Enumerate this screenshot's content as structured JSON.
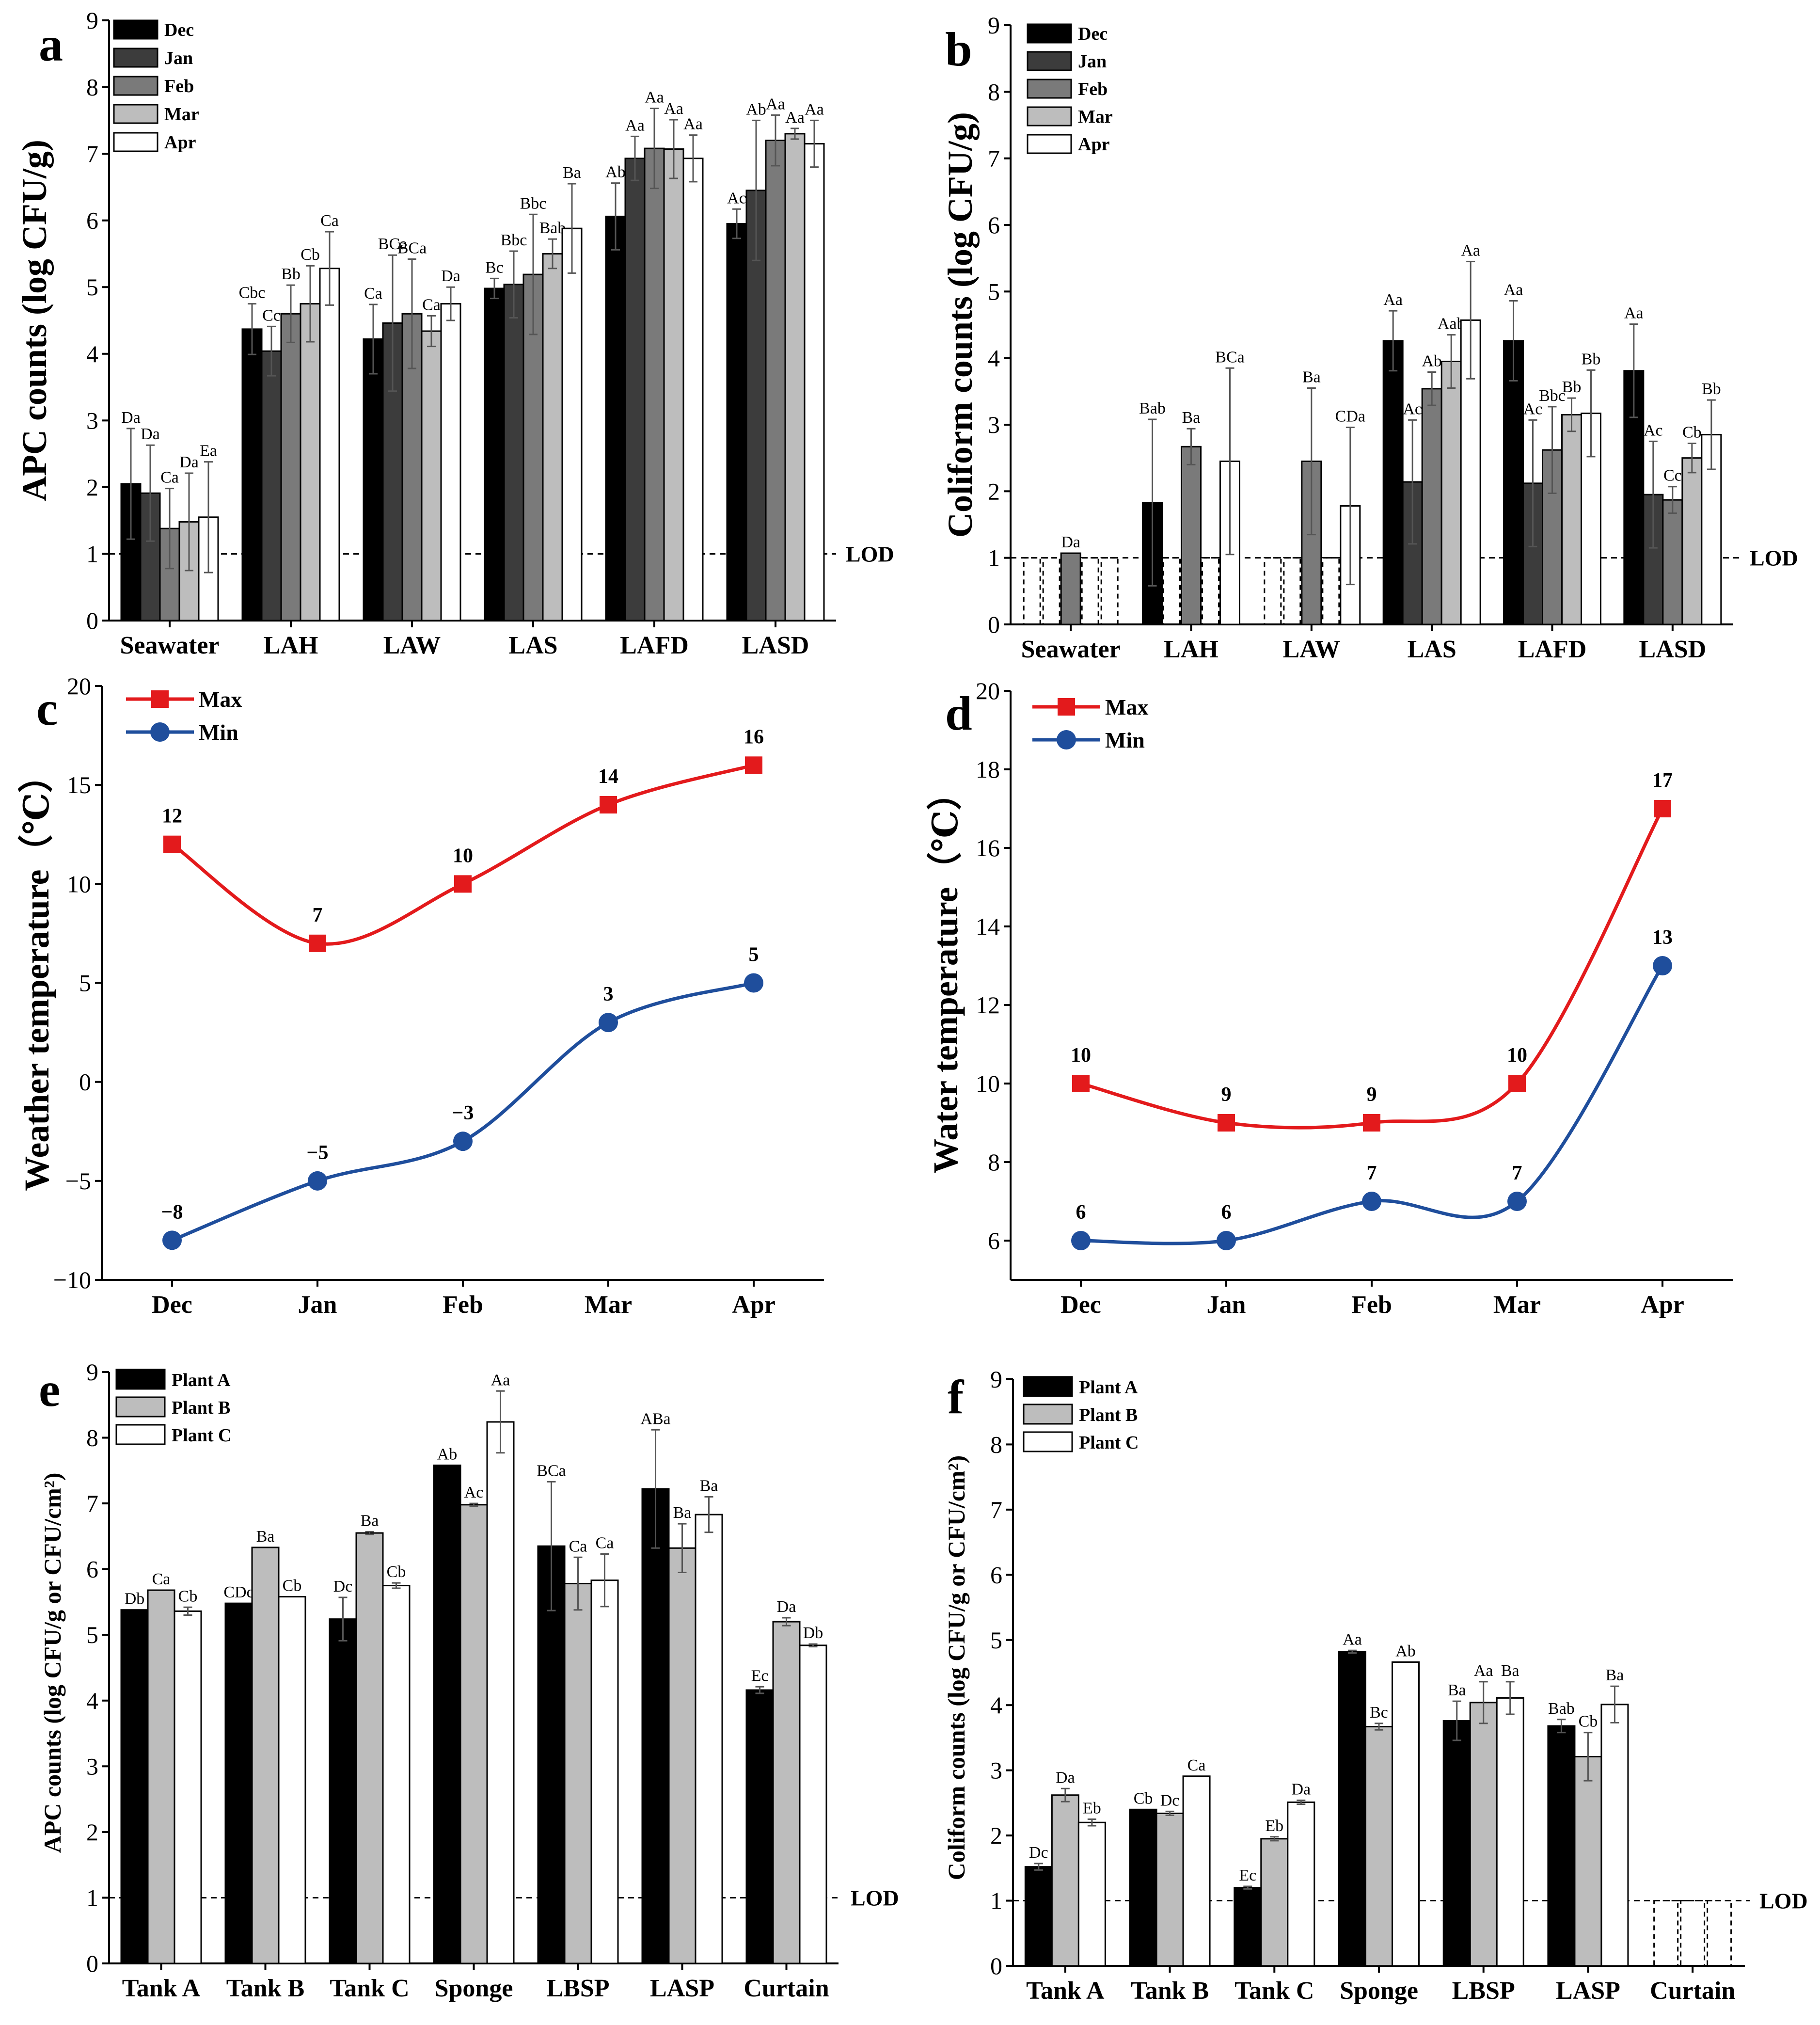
{
  "figure": {
    "colors": {
      "Dec": "#000000",
      "Jan": "#3c3c3c",
      "Feb": "#7a7a7a",
      "Mar": "#bdbdbd",
      "Apr": "#ffffff",
      "PlantA": "#000000",
      "PlantB": "#bdbdbd",
      "PlantC": "#ffffff",
      "Max": "#e31a1c",
      "Min": "#1f4e9c"
    }
  },
  "chart_data": [
    {
      "panel": "a",
      "type": "bar",
      "ylabel": "APC counts (log CFU/g)",
      "ylim": [
        0,
        9
      ],
      "yticks": [
        0,
        1,
        2,
        3,
        4,
        5,
        6,
        7,
        8,
        9
      ],
      "lod": 1,
      "lod_label": "LOD",
      "categories": [
        "Seawater",
        "LAH",
        "LAW",
        "LAS",
        "LAFD",
        "LASD"
      ],
      "legend": [
        "Dec",
        "Jan",
        "Feb",
        "Mar",
        "Apr"
      ],
      "series": [
        {
          "name": "Dec",
          "values": [
            2.05,
            4.37,
            4.22,
            4.98,
            6.06,
            5.95
          ],
          "err": [
            0.83,
            0.38,
            0.52,
            0.15,
            0.5,
            0.22
          ],
          "sig": [
            "Da",
            "Cbc",
            "Ca",
            "Bc",
            "Ab",
            "Ac"
          ]
        },
        {
          "name": "Jan",
          "values": [
            1.91,
            4.04,
            4.46,
            5.04,
            6.93,
            6.45
          ],
          "err": [
            0.72,
            0.37,
            1.02,
            0.5,
            0.33,
            1.05
          ],
          "sig": [
            "Da",
            "Cc",
            "BCa",
            "Bbc",
            "Aa",
            "Ab"
          ]
        },
        {
          "name": "Feb",
          "values": [
            1.38,
            4.6,
            4.6,
            5.19,
            7.08,
            7.2
          ],
          "err": [
            0.6,
            0.43,
            0.82,
            0.9,
            0.6,
            0.38
          ],
          "sig": [
            "Ca",
            "Bb",
            "BCa",
            "Bbc",
            "Aa",
            "Aa"
          ]
        },
        {
          "name": "Mar",
          "values": [
            1.48,
            4.75,
            4.34,
            5.5,
            7.07,
            7.3
          ],
          "err": [
            0.73,
            0.57,
            0.23,
            0.22,
            0.44,
            0.08
          ],
          "sig": [
            "Da",
            "Cb",
            "Ca",
            "Bab",
            "Aa",
            "Aa"
          ]
        },
        {
          "name": "Apr",
          "values": [
            1.55,
            5.28,
            4.75,
            5.88,
            6.93,
            7.15
          ],
          "err": [
            0.83,
            0.55,
            0.25,
            0.67,
            0.35,
            0.35
          ],
          "sig": [
            "Ea",
            "Ca",
            "Da",
            "Ba",
            "Aa",
            "Aa"
          ]
        }
      ]
    },
    {
      "panel": "b",
      "type": "bar",
      "ylabel": "Coliform counts (log CFU/g)",
      "ylim": [
        0,
        9
      ],
      "yticks": [
        0,
        1,
        2,
        3,
        4,
        5,
        6,
        7,
        8,
        9
      ],
      "lod": 1,
      "lod_label": "LOD",
      "categories": [
        "Seawater",
        "LAH",
        "LAW",
        "LAS",
        "LAFD",
        "LASD"
      ],
      "legend": [
        "Dec",
        "Jan",
        "Feb",
        "Mar",
        "Apr"
      ],
      "series": [
        {
          "name": "Dec",
          "values": [
            null,
            1.83,
            null,
            4.26,
            4.26,
            3.81
          ],
          "err": [
            0,
            1.25,
            0,
            0.45,
            0.6,
            0.7
          ],
          "sig": [
            "",
            "Bab",
            "",
            "Aa",
            "Aa",
            "Aa"
          ]
        },
        {
          "name": "Jan",
          "values": [
            null,
            null,
            null,
            2.14,
            2.12,
            1.95
          ],
          "err": [
            0,
            0,
            0,
            0.93,
            0.95,
            0.8
          ],
          "sig": [
            "",
            "",
            "",
            "Ac",
            "Ac",
            "Ac"
          ]
        },
        {
          "name": "Feb",
          "values": [
            1.07,
            2.67,
            2.45,
            3.54,
            2.62,
            1.87
          ],
          "err": [
            0,
            0.27,
            1.1,
            0.25,
            0.65,
            0.2
          ],
          "sig": [
            "Da",
            "Ba",
            "Ba",
            "Ab",
            "Bbc",
            "Cc"
          ]
        },
        {
          "name": "Mar",
          "values": [
            null,
            null,
            null,
            3.95,
            3.15,
            2.5
          ],
          "err": [
            0,
            0,
            0,
            0.4,
            0.25,
            0.22
          ],
          "sig": [
            "",
            "",
            "",
            "Aab",
            "Bb",
            "Cb"
          ]
        },
        {
          "name": "Apr",
          "values": [
            null,
            2.45,
            1.78,
            4.57,
            3.17,
            2.85
          ],
          "err": [
            0,
            1.4,
            1.18,
            0.88,
            0.65,
            0.52
          ],
          "sig": [
            "",
            "BCa",
            "CDa",
            "Aa",
            "Bb",
            "Bb"
          ]
        }
      ]
    },
    {
      "panel": "c",
      "type": "line",
      "ylabel": "Weather temperature（℃）",
      "ylim": [
        -10,
        20
      ],
      "yticks": [
        -10,
        -5,
        0,
        5,
        10,
        15,
        20
      ],
      "categories": [
        "Dec",
        "Jan",
        "Feb",
        "Mar",
        "Apr"
      ],
      "series": [
        {
          "name": "Max",
          "values": [
            12,
            7,
            10,
            14,
            16
          ],
          "labels": [
            "12",
            "7",
            "10",
            "14",
            "16"
          ]
        },
        {
          "name": "Min",
          "values": [
            -8,
            -5,
            -3,
            3,
            5
          ],
          "labels": [
            "−8",
            "−5",
            "−3",
            "3",
            "5"
          ]
        }
      ]
    },
    {
      "panel": "d",
      "type": "line",
      "ylabel": "Water temperature（℃）",
      "ylim": [
        5,
        20
      ],
      "yticks": [
        6,
        8,
        10,
        12,
        14,
        16,
        18,
        20
      ],
      "categories": [
        "Dec",
        "Jan",
        "Feb",
        "Mar",
        "Apr"
      ],
      "series": [
        {
          "name": "Max",
          "values": [
            10,
            9,
            9,
            10,
            17
          ],
          "labels": [
            "10",
            "9",
            "9",
            "10",
            "17"
          ]
        },
        {
          "name": "Min",
          "values": [
            6,
            6,
            7,
            7,
            13
          ],
          "labels": [
            "6",
            "6",
            "7",
            "7",
            "13"
          ]
        }
      ]
    },
    {
      "panel": "e",
      "type": "bar",
      "ylabel": "APC counts (log CFU/g or CFU/cm²)",
      "ylim": [
        0,
        9
      ],
      "yticks": [
        0,
        1,
        2,
        3,
        4,
        5,
        6,
        7,
        8,
        9
      ],
      "lod": 1,
      "lod_label": "LOD",
      "categories": [
        "Tank A",
        "Tank B",
        "Tank C",
        "Sponge",
        "LBSP",
        "LASP",
        "Curtain"
      ],
      "legend": [
        "Plant A",
        "Plant B",
        "Plant C"
      ],
      "series": [
        {
          "name": "Plant A",
          "values": [
            5.38,
            5.48,
            5.24,
            7.58,
            6.35,
            7.22,
            4.16
          ],
          "err": [
            0,
            0,
            0.33,
            0,
            0.98,
            0.9,
            0.05
          ],
          "sig": [
            "Db",
            "CDc",
            "Dc",
            "Ab",
            "BCa",
            "ABa",
            "Ec"
          ]
        },
        {
          "name": "Plant B",
          "values": [
            5.68,
            6.33,
            6.55,
            6.98,
            5.78,
            6.32,
            5.2
          ],
          "err": [
            0,
            0,
            0.02,
            0.02,
            0.4,
            0.37,
            0.06
          ],
          "sig": [
            "Ca",
            "Ba",
            "Ba",
            "Ac",
            "Ca",
            "Ba",
            "Da"
          ]
        },
        {
          "name": "Plant C",
          "values": [
            5.36,
            5.58,
            5.75,
            8.24,
            5.83,
            6.83,
            4.84
          ],
          "err": [
            0.06,
            0,
            0.04,
            0.47,
            0.4,
            0.27,
            0.02
          ],
          "sig": [
            "Cb",
            "Cb",
            "Cb",
            "Aa",
            "Ca",
            "Ba",
            "Db"
          ]
        }
      ]
    },
    {
      "panel": "f",
      "type": "bar",
      "ylabel": "Coliform counts (log CFU/g or CFU/cm²)",
      "ylim": [
        0,
        9
      ],
      "yticks": [
        0,
        1,
        2,
        3,
        4,
        5,
        6,
        7,
        8,
        9
      ],
      "lod": 1,
      "lod_label": "LOD",
      "categories": [
        "Tank A",
        "Tank B",
        "Tank C",
        "Sponge",
        "LBSP",
        "LASP",
        "Curtain"
      ],
      "legend": [
        "Plant A",
        "Plant B",
        "Plant C"
      ],
      "series": [
        {
          "name": "Plant A",
          "values": [
            1.52,
            2.4,
            1.2,
            4.82,
            3.76,
            3.68,
            null
          ],
          "err": [
            0.05,
            0,
            0.02,
            0.02,
            0.3,
            0.1,
            0
          ],
          "sig": [
            "Dc",
            "Cb",
            "Ec",
            "Aa",
            "Ba",
            "Bab",
            ""
          ]
        },
        {
          "name": "Plant B",
          "values": [
            2.62,
            2.34,
            1.95,
            3.67,
            4.04,
            3.21,
            null
          ],
          "err": [
            0.1,
            0.03,
            0.03,
            0.05,
            0.32,
            0.37,
            0
          ],
          "sig": [
            "Da",
            "Dc",
            "Eb",
            "Bc",
            "Aa",
            "Cb",
            ""
          ]
        },
        {
          "name": "Plant C",
          "values": [
            2.2,
            2.91,
            2.51,
            4.66,
            4.11,
            4.01,
            null
          ],
          "err": [
            0.05,
            0,
            0.03,
            0,
            0.25,
            0.28,
            0
          ],
          "sig": [
            "Eb",
            "Ca",
            "Da",
            "Ab",
            "Ba",
            "Ba",
            ""
          ]
        }
      ]
    }
  ]
}
